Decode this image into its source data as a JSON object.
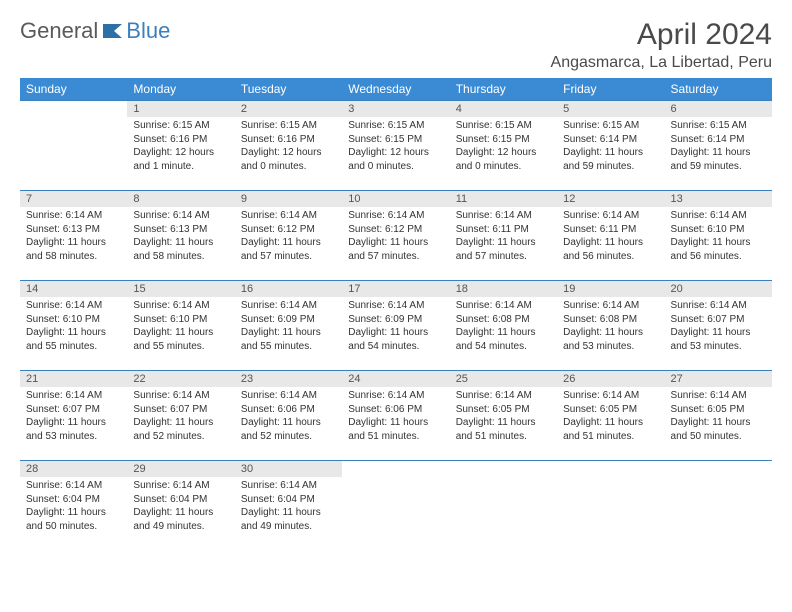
{
  "logo": {
    "text1": "General",
    "text2": "Blue",
    "color_general": "#5a5a5a",
    "color_blue": "#3b7fbf"
  },
  "title": "April 2024",
  "location": "Angasmarca, La Libertad, Peru",
  "header_bg": "#3b8bd4",
  "header_fg": "#ffffff",
  "daynum_bg": "#e8e8e8",
  "border_color": "#3b7fbf",
  "weekdays": [
    "Sunday",
    "Monday",
    "Tuesday",
    "Wednesday",
    "Thursday",
    "Friday",
    "Saturday"
  ],
  "weeks": [
    [
      null,
      {
        "n": "1",
        "sr": "6:15 AM",
        "ss": "6:16 PM",
        "dl": "12 hours and 1 minute."
      },
      {
        "n": "2",
        "sr": "6:15 AM",
        "ss": "6:16 PM",
        "dl": "12 hours and 0 minutes."
      },
      {
        "n": "3",
        "sr": "6:15 AM",
        "ss": "6:15 PM",
        "dl": "12 hours and 0 minutes."
      },
      {
        "n": "4",
        "sr": "6:15 AM",
        "ss": "6:15 PM",
        "dl": "12 hours and 0 minutes."
      },
      {
        "n": "5",
        "sr": "6:15 AM",
        "ss": "6:14 PM",
        "dl": "11 hours and 59 minutes."
      },
      {
        "n": "6",
        "sr": "6:15 AM",
        "ss": "6:14 PM",
        "dl": "11 hours and 59 minutes."
      }
    ],
    [
      {
        "n": "7",
        "sr": "6:14 AM",
        "ss": "6:13 PM",
        "dl": "11 hours and 58 minutes."
      },
      {
        "n": "8",
        "sr": "6:14 AM",
        "ss": "6:13 PM",
        "dl": "11 hours and 58 minutes."
      },
      {
        "n": "9",
        "sr": "6:14 AM",
        "ss": "6:12 PM",
        "dl": "11 hours and 57 minutes."
      },
      {
        "n": "10",
        "sr": "6:14 AM",
        "ss": "6:12 PM",
        "dl": "11 hours and 57 minutes."
      },
      {
        "n": "11",
        "sr": "6:14 AM",
        "ss": "6:11 PM",
        "dl": "11 hours and 57 minutes."
      },
      {
        "n": "12",
        "sr": "6:14 AM",
        "ss": "6:11 PM",
        "dl": "11 hours and 56 minutes."
      },
      {
        "n": "13",
        "sr": "6:14 AM",
        "ss": "6:10 PM",
        "dl": "11 hours and 56 minutes."
      }
    ],
    [
      {
        "n": "14",
        "sr": "6:14 AM",
        "ss": "6:10 PM",
        "dl": "11 hours and 55 minutes."
      },
      {
        "n": "15",
        "sr": "6:14 AM",
        "ss": "6:10 PM",
        "dl": "11 hours and 55 minutes."
      },
      {
        "n": "16",
        "sr": "6:14 AM",
        "ss": "6:09 PM",
        "dl": "11 hours and 55 minutes."
      },
      {
        "n": "17",
        "sr": "6:14 AM",
        "ss": "6:09 PM",
        "dl": "11 hours and 54 minutes."
      },
      {
        "n": "18",
        "sr": "6:14 AM",
        "ss": "6:08 PM",
        "dl": "11 hours and 54 minutes."
      },
      {
        "n": "19",
        "sr": "6:14 AM",
        "ss": "6:08 PM",
        "dl": "11 hours and 53 minutes."
      },
      {
        "n": "20",
        "sr": "6:14 AM",
        "ss": "6:07 PM",
        "dl": "11 hours and 53 minutes."
      }
    ],
    [
      {
        "n": "21",
        "sr": "6:14 AM",
        "ss": "6:07 PM",
        "dl": "11 hours and 53 minutes."
      },
      {
        "n": "22",
        "sr": "6:14 AM",
        "ss": "6:07 PM",
        "dl": "11 hours and 52 minutes."
      },
      {
        "n": "23",
        "sr": "6:14 AM",
        "ss": "6:06 PM",
        "dl": "11 hours and 52 minutes."
      },
      {
        "n": "24",
        "sr": "6:14 AM",
        "ss": "6:06 PM",
        "dl": "11 hours and 51 minutes."
      },
      {
        "n": "25",
        "sr": "6:14 AM",
        "ss": "6:05 PM",
        "dl": "11 hours and 51 minutes."
      },
      {
        "n": "26",
        "sr": "6:14 AM",
        "ss": "6:05 PM",
        "dl": "11 hours and 51 minutes."
      },
      {
        "n": "27",
        "sr": "6:14 AM",
        "ss": "6:05 PM",
        "dl": "11 hours and 50 minutes."
      }
    ],
    [
      {
        "n": "28",
        "sr": "6:14 AM",
        "ss": "6:04 PM",
        "dl": "11 hours and 50 minutes."
      },
      {
        "n": "29",
        "sr": "6:14 AM",
        "ss": "6:04 PM",
        "dl": "11 hours and 49 minutes."
      },
      {
        "n": "30",
        "sr": "6:14 AM",
        "ss": "6:04 PM",
        "dl": "11 hours and 49 minutes."
      },
      null,
      null,
      null,
      null
    ]
  ],
  "labels": {
    "sunrise": "Sunrise:",
    "sunset": "Sunset:",
    "daylight": "Daylight:"
  }
}
